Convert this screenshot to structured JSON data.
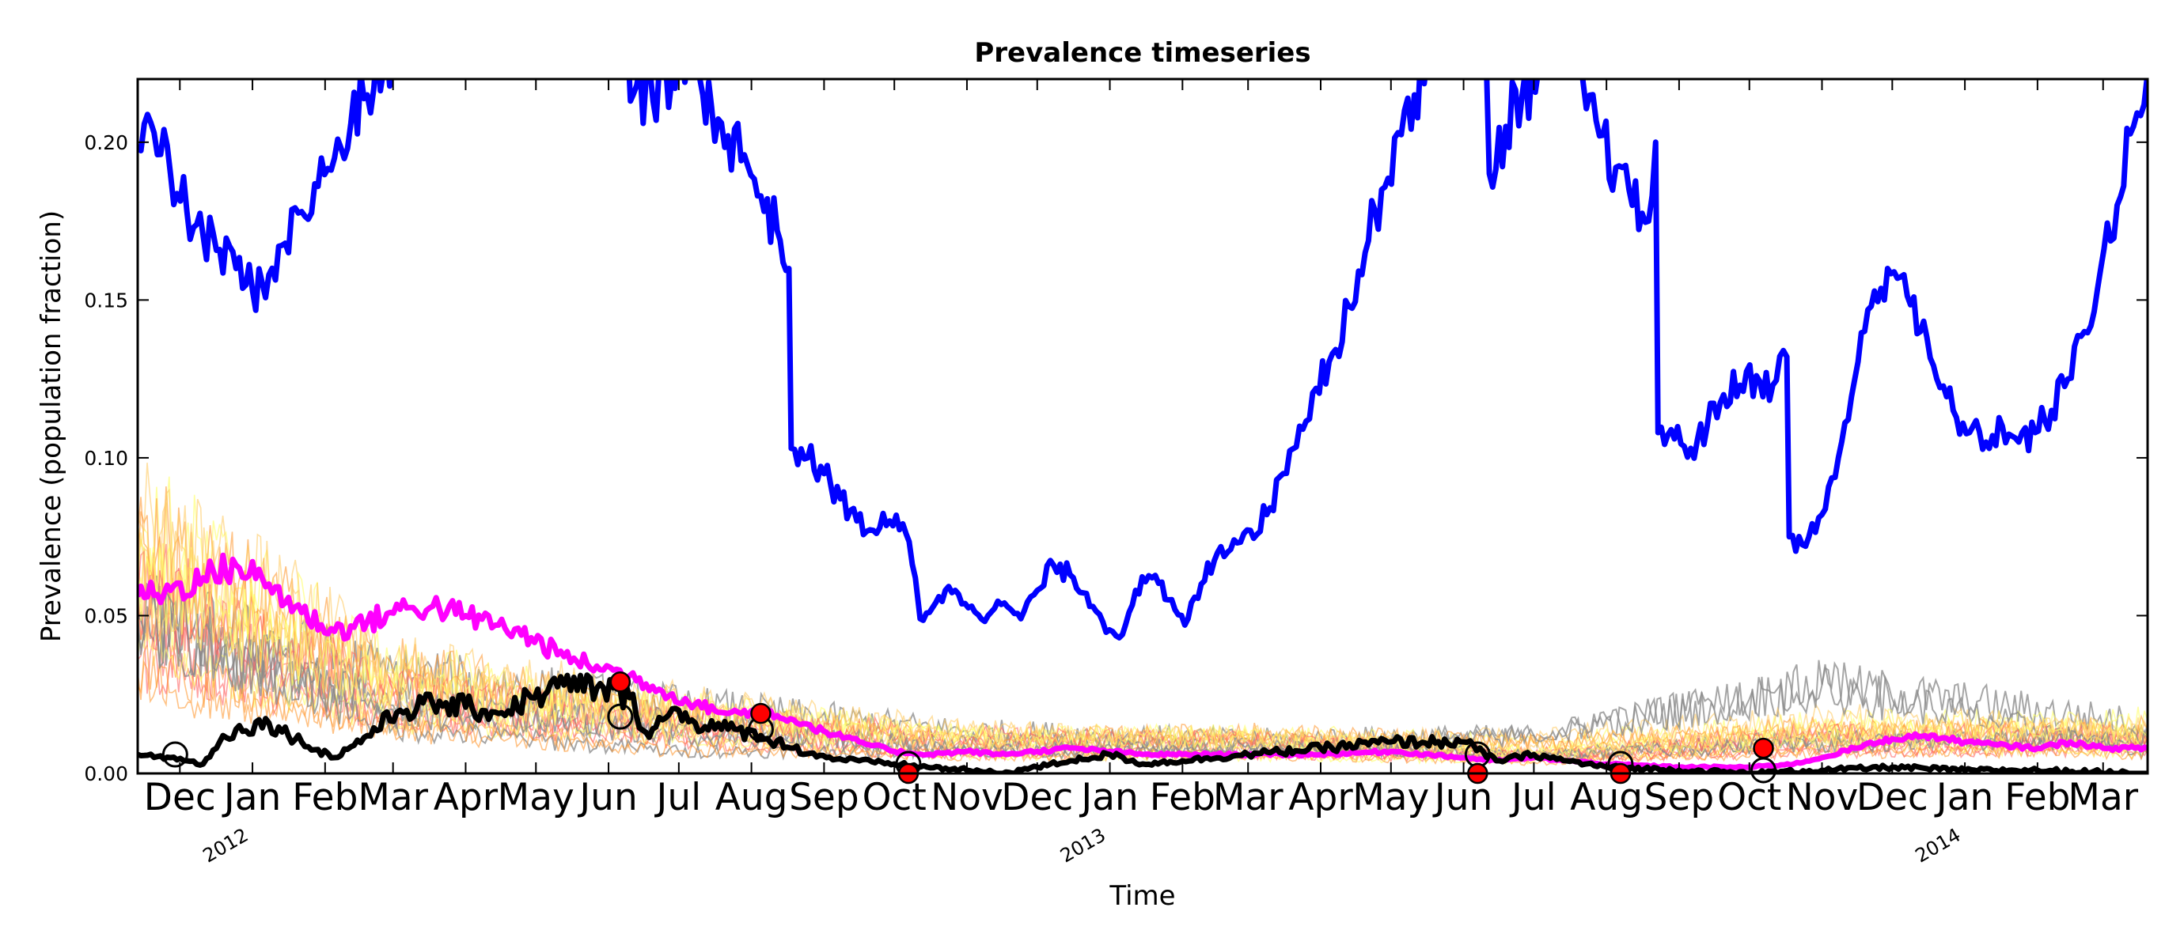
{
  "chart_data": {
    "type": "line",
    "title": "Prevalence timeseries",
    "xlabel": "Time",
    "ylabel": "Prevalence (population fraction)",
    "xlim": [
      "2011-11-13",
      "2014-03-20"
    ],
    "ylim": [
      0,
      0.22
    ],
    "yticks": [
      {
        "value": 0.0,
        "label": "0.00"
      },
      {
        "value": 0.05,
        "label": "0.05"
      },
      {
        "value": 0.1,
        "label": "0.10"
      },
      {
        "value": 0.15,
        "label": "0.15"
      },
      {
        "value": 0.2,
        "label": "0.20"
      }
    ],
    "xticks": [
      {
        "date": "2011-12-01",
        "label": "Dec"
      },
      {
        "date": "2012-01-01",
        "label": "Jan"
      },
      {
        "date": "2012-02-01",
        "label": "Feb"
      },
      {
        "date": "2012-03-01",
        "label": "Mar"
      },
      {
        "date": "2012-04-01",
        "label": "Apr"
      },
      {
        "date": "2012-05-01",
        "label": "May"
      },
      {
        "date": "2012-06-01",
        "label": "Jun"
      },
      {
        "date": "2012-07-01",
        "label": "Jul"
      },
      {
        "date": "2012-08-01",
        "label": "Aug"
      },
      {
        "date": "2012-09-01",
        "label": "Sep"
      },
      {
        "date": "2012-10-01",
        "label": "Oct"
      },
      {
        "date": "2012-11-01",
        "label": "Nov"
      },
      {
        "date": "2012-12-01",
        "label": "Dec"
      },
      {
        "date": "2013-01-01",
        "label": "Jan"
      },
      {
        "date": "2013-02-01",
        "label": "Feb"
      },
      {
        "date": "2013-03-01",
        "label": "Mar"
      },
      {
        "date": "2013-04-01",
        "label": "Apr"
      },
      {
        "date": "2013-05-01",
        "label": "May"
      },
      {
        "date": "2013-06-01",
        "label": "Jun"
      },
      {
        "date": "2013-07-01",
        "label": "Jul"
      },
      {
        "date": "2013-08-01",
        "label": "Aug"
      },
      {
        "date": "2013-09-01",
        "label": "Sep"
      },
      {
        "date": "2013-10-01",
        "label": "Oct"
      },
      {
        "date": "2013-11-01",
        "label": "Nov"
      },
      {
        "date": "2013-12-01",
        "label": "Dec"
      },
      {
        "date": "2014-01-01",
        "label": "Jan"
      },
      {
        "date": "2014-02-01",
        "label": "Feb"
      },
      {
        "date": "2014-03-01",
        "label": "Mar"
      }
    ],
    "year_labels": [
      {
        "date": "2012-01-01",
        "label": "2012"
      },
      {
        "date": "2013-01-01",
        "label": "2013"
      },
      {
        "date": "2014-01-01",
        "label": "2014"
      }
    ],
    "grid": false,
    "legend": "none",
    "series": [
      {
        "color": "#0000ff",
        "points": [
          [
            "2011-11-13",
            0.198
          ],
          [
            "2011-11-20",
            0.203
          ],
          [
            "2011-11-27",
            0.19
          ],
          [
            "2011-12-04",
            0.178
          ],
          [
            "2011-12-11",
            0.17
          ],
          [
            "2011-12-18",
            0.166
          ],
          [
            "2011-12-25",
            0.16
          ],
          [
            "2012-01-01",
            0.153
          ],
          [
            "2012-01-08",
            0.158
          ],
          [
            "2012-01-15",
            0.168
          ],
          [
            "2012-01-22",
            0.178
          ],
          [
            "2012-01-29",
            0.186
          ],
          [
            "2012-02-05",
            0.195
          ],
          [
            "2012-02-12",
            0.206
          ],
          [
            "2012-02-19",
            0.215
          ],
          [
            "2012-02-26",
            0.223
          ],
          [
            "2012-03-10",
            0.24
          ],
          [
            "2012-04-10",
            0.27
          ],
          [
            "2012-05-10",
            0.26
          ],
          [
            "2012-06-05",
            0.235
          ],
          [
            "2012-06-13",
            0.218
          ],
          [
            "2012-06-20",
            0.213
          ],
          [
            "2012-06-28",
            0.22
          ],
          [
            "2012-07-05",
            0.225
          ],
          [
            "2012-07-10",
            0.22
          ],
          [
            "2012-07-15",
            0.211
          ],
          [
            "2012-07-22",
            0.202
          ],
          [
            "2012-07-29",
            0.196
          ],
          [
            "2012-08-05",
            0.183
          ],
          [
            "2012-08-12",
            0.172
          ],
          [
            "2012-08-17",
            0.16
          ],
          [
            "2012-08-18",
            0.103
          ],
          [
            "2012-08-25",
            0.1
          ],
          [
            "2012-09-01",
            0.095
          ],
          [
            "2012-09-08",
            0.087
          ],
          [
            "2012-09-15",
            0.08
          ],
          [
            "2012-09-22",
            0.077
          ],
          [
            "2012-09-29",
            0.08
          ],
          [
            "2012-10-06",
            0.076
          ],
          [
            "2012-10-10",
            0.062
          ],
          [
            "2012-10-12",
            0.049
          ],
          [
            "2012-10-20",
            0.056
          ],
          [
            "2012-10-27",
            0.058
          ],
          [
            "2012-11-03",
            0.053
          ],
          [
            "2012-11-10",
            0.05
          ],
          [
            "2012-11-17",
            0.054
          ],
          [
            "2012-11-24",
            0.049
          ],
          [
            "2012-12-01",
            0.058
          ],
          [
            "2012-12-08",
            0.066
          ],
          [
            "2012-12-15",
            0.063
          ],
          [
            "2012-12-22",
            0.057
          ],
          [
            "2012-12-29",
            0.048
          ],
          [
            "2013-01-05",
            0.043
          ],
          [
            "2013-01-12",
            0.058
          ],
          [
            "2013-01-19",
            0.062
          ],
          [
            "2013-01-26",
            0.055
          ],
          [
            "2013-02-02",
            0.047
          ],
          [
            "2013-02-09",
            0.06
          ],
          [
            "2013-02-16",
            0.07
          ],
          [
            "2013-02-23",
            0.074
          ],
          [
            "2013-03-02",
            0.077
          ],
          [
            "2013-03-09",
            0.082
          ],
          [
            "2013-03-16",
            0.095
          ],
          [
            "2013-03-23",
            0.11
          ],
          [
            "2013-03-30",
            0.122
          ],
          [
            "2013-04-06",
            0.133
          ],
          [
            "2013-04-13",
            0.148
          ],
          [
            "2013-04-20",
            0.165
          ],
          [
            "2013-04-27",
            0.185
          ],
          [
            "2013-05-04",
            0.203
          ],
          [
            "2013-05-11",
            0.215
          ],
          [
            "2013-05-18",
            0.225
          ],
          [
            "2013-06-10",
            0.245
          ],
          [
            "2013-06-12",
            0.19
          ],
          [
            "2013-06-19",
            0.205
          ],
          [
            "2013-06-26",
            0.215
          ],
          [
            "2013-07-03",
            0.223
          ],
          [
            "2013-07-15",
            0.232
          ],
          [
            "2013-07-22",
            0.219
          ],
          [
            "2013-07-29",
            0.202
          ],
          [
            "2013-08-05",
            0.192
          ],
          [
            "2013-08-12",
            0.18
          ],
          [
            "2013-08-19",
            0.175
          ],
          [
            "2013-08-22",
            0.2
          ],
          [
            "2013-08-23",
            0.108
          ],
          [
            "2013-08-30",
            0.106
          ],
          [
            "2013-09-06",
            0.103
          ],
          [
            "2013-09-13",
            0.11
          ],
          [
            "2013-09-20",
            0.12
          ],
          [
            "2013-09-27",
            0.123
          ],
          [
            "2013-10-04",
            0.126
          ],
          [
            "2013-10-11",
            0.123
          ],
          [
            "2013-10-17",
            0.132
          ],
          [
            "2013-10-18",
            0.075
          ],
          [
            "2013-10-25",
            0.072
          ],
          [
            "2013-11-01",
            0.082
          ],
          [
            "2013-11-08",
            0.1
          ],
          [
            "2013-11-15",
            0.125
          ],
          [
            "2013-11-22",
            0.148
          ],
          [
            "2013-11-29",
            0.16
          ],
          [
            "2013-12-06",
            0.158
          ],
          [
            "2013-12-13",
            0.14
          ],
          [
            "2013-12-20",
            0.125
          ],
          [
            "2013-12-27",
            0.115
          ],
          [
            "2014-01-03",
            0.108
          ],
          [
            "2014-01-10",
            0.105
          ],
          [
            "2014-01-17",
            0.11
          ],
          [
            "2014-01-24",
            0.105
          ],
          [
            "2014-01-31",
            0.108
          ],
          [
            "2014-02-07",
            0.115
          ],
          [
            "2014-02-14",
            0.125
          ],
          [
            "2014-02-21",
            0.14
          ],
          [
            "2014-02-28",
            0.16
          ],
          [
            "2014-03-07",
            0.18
          ],
          [
            "2014-03-14",
            0.205
          ],
          [
            "2014-03-20",
            0.222
          ]
        ]
      },
      {
        "color": "#ff00ff",
        "points": [
          [
            "2011-11-13",
            0.056
          ],
          [
            "2011-11-27",
            0.058
          ],
          [
            "2011-12-11",
            0.062
          ],
          [
            "2011-12-25",
            0.066
          ],
          [
            "2012-01-08",
            0.06
          ],
          [
            "2012-01-22",
            0.051
          ],
          [
            "2012-02-05",
            0.045
          ],
          [
            "2012-02-19",
            0.048
          ],
          [
            "2012-03-04",
            0.052
          ],
          [
            "2012-03-18",
            0.053
          ],
          [
            "2012-04-01",
            0.05
          ],
          [
            "2012-04-15",
            0.047
          ],
          [
            "2012-04-29",
            0.043
          ],
          [
            "2012-05-13",
            0.037
          ],
          [
            "2012-05-27",
            0.034
          ],
          [
            "2012-06-10",
            0.031
          ],
          [
            "2012-06-24",
            0.026
          ],
          [
            "2012-07-08",
            0.022
          ],
          [
            "2012-07-22",
            0.019
          ],
          [
            "2012-08-05",
            0.02
          ],
          [
            "2012-08-19",
            0.017
          ],
          [
            "2012-09-02",
            0.013
          ],
          [
            "2012-09-16",
            0.01
          ],
          [
            "2012-10-01",
            0.007
          ],
          [
            "2012-10-15",
            0.006
          ],
          [
            "2012-11-01",
            0.007
          ],
          [
            "2012-11-15",
            0.006
          ],
          [
            "2012-12-01",
            0.007
          ],
          [
            "2012-12-15",
            0.008
          ],
          [
            "2013-01-01",
            0.007
          ],
          [
            "2013-01-15",
            0.006
          ],
          [
            "2013-02-01",
            0.006
          ],
          [
            "2013-03-01",
            0.006
          ],
          [
            "2013-04-01",
            0.006
          ],
          [
            "2013-05-01",
            0.007
          ],
          [
            "2013-06-01",
            0.005
          ],
          [
            "2013-06-15",
            0.004
          ],
          [
            "2013-07-01",
            0.005
          ],
          [
            "2013-07-15",
            0.004
          ],
          [
            "2013-08-01",
            0.003
          ],
          [
            "2013-09-01",
            0.002
          ],
          [
            "2013-10-01",
            0.002
          ],
          [
            "2013-10-20",
            0.003
          ],
          [
            "2013-11-01",
            0.005
          ],
          [
            "2013-11-15",
            0.008
          ],
          [
            "2013-12-01",
            0.011
          ],
          [
            "2013-12-15",
            0.012
          ],
          [
            "2014-01-01",
            0.01
          ],
          [
            "2014-01-15",
            0.009
          ],
          [
            "2014-02-01",
            0.008
          ],
          [
            "2014-02-15",
            0.01
          ],
          [
            "2014-03-01",
            0.008
          ],
          [
            "2014-03-20",
            0.008
          ]
        ]
      },
      {
        "color": "#000000",
        "points": [
          [
            "2011-11-13",
            0.006
          ],
          [
            "2011-11-27",
            0.005
          ],
          [
            "2011-12-04",
            0.004
          ],
          [
            "2011-12-11",
            0.003
          ],
          [
            "2011-12-18",
            0.01
          ],
          [
            "2011-12-25",
            0.014
          ],
          [
            "2012-01-08",
            0.016
          ],
          [
            "2012-01-22",
            0.01
          ],
          [
            "2012-02-05",
            0.005
          ],
          [
            "2012-02-19",
            0.012
          ],
          [
            "2012-03-04",
            0.02
          ],
          [
            "2012-03-18",
            0.022
          ],
          [
            "2012-04-01",
            0.021
          ],
          [
            "2012-04-15",
            0.019
          ],
          [
            "2012-04-29",
            0.024
          ],
          [
            "2012-05-13",
            0.028
          ],
          [
            "2012-05-27",
            0.027
          ],
          [
            "2012-06-10",
            0.024
          ],
          [
            "2012-06-17",
            0.013
          ],
          [
            "2012-06-24",
            0.017
          ],
          [
            "2012-07-01",
            0.02
          ],
          [
            "2012-07-08",
            0.016
          ],
          [
            "2012-07-22",
            0.014
          ],
          [
            "2012-08-05",
            0.012
          ],
          [
            "2012-08-19",
            0.008
          ],
          [
            "2012-09-02",
            0.005
          ],
          [
            "2012-09-16",
            0.004
          ],
          [
            "2012-10-01",
            0.003
          ],
          [
            "2012-10-15",
            0.002
          ],
          [
            "2012-11-01",
            0.001
          ],
          [
            "2012-11-15",
            0.0
          ],
          [
            "2012-12-01",
            0.002
          ],
          [
            "2012-12-15",
            0.004
          ],
          [
            "2013-01-01",
            0.006
          ],
          [
            "2013-01-15",
            0.003
          ],
          [
            "2013-02-01",
            0.004
          ],
          [
            "2013-03-01",
            0.006
          ],
          [
            "2013-04-01",
            0.008
          ],
          [
            "2013-05-01",
            0.01
          ],
          [
            "2013-06-01",
            0.01
          ],
          [
            "2013-06-15",
            0.004
          ],
          [
            "2013-07-01",
            0.006
          ],
          [
            "2013-07-15",
            0.004
          ],
          [
            "2013-08-01",
            0.002
          ],
          [
            "2013-09-01",
            0.001
          ],
          [
            "2013-10-01",
            0.0
          ],
          [
            "2013-11-01",
            0.001
          ],
          [
            "2013-12-01",
            0.002
          ],
          [
            "2014-01-01",
            0.001
          ],
          [
            "2014-02-01",
            0.001
          ],
          [
            "2014-03-20",
            0.0
          ]
        ]
      }
    ],
    "markers": {
      "red_filled": [
        [
          "2012-06-06",
          0.029
        ],
        [
          "2012-08-05",
          0.019
        ],
        [
          "2012-10-07",
          0.0
        ],
        [
          "2013-06-07",
          0.0
        ],
        [
          "2013-08-07",
          0.0
        ],
        [
          "2013-10-07",
          0.008
        ]
      ],
      "black_open": [
        [
          "2011-11-29",
          0.006
        ],
        [
          "2012-06-06",
          0.018
        ],
        [
          "2012-08-05",
          0.014
        ],
        [
          "2012-10-07",
          0.003
        ],
        [
          "2013-06-07",
          0.006
        ],
        [
          "2013-08-07",
          0.003
        ],
        [
          "2013-10-07",
          0.001
        ]
      ]
    }
  }
}
